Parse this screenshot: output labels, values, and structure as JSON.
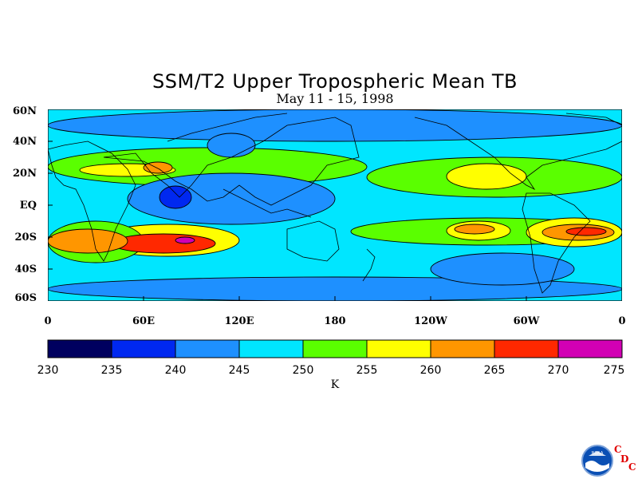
{
  "title": "SSM/T2 Upper Tropospheric Mean TB",
  "subtitle": "May 11 - 15, 1998",
  "y_ticks": [
    "60N",
    "40N",
    "20N",
    "EQ",
    "20S",
    "40S",
    "60S"
  ],
  "x_ticks": [
    "0",
    "60E",
    "120E",
    "180",
    "120W",
    "60W",
    "0"
  ],
  "colorbar": {
    "levels": [
      "230",
      "235",
      "240",
      "245",
      "250",
      "255",
      "260",
      "265",
      "270",
      "275"
    ],
    "colors": [
      "#00005f",
      "#0028f0",
      "#1e90ff",
      "#00e6ff",
      "#5aff00",
      "#ffff00",
      "#ff9600",
      "#ff2800",
      "#d200b4"
    ],
    "unit": "K"
  },
  "logo": {
    "text": "NOAA",
    "letters": [
      "C",
      "D",
      "C"
    ]
  },
  "chart_data": {
    "type": "heatmap",
    "variable": "Upper Tropospheric Mean Brightness Temperature",
    "units": "K",
    "x_range": [
      0,
      360
    ],
    "y_range": [
      -60,
      60
    ],
    "bins": [
      230,
      235,
      240,
      245,
      250,
      255,
      260,
      265,
      270,
      275
    ],
    "background_value": 247,
    "features": [
      {
        "lon": [
          0,
          50
        ],
        "lat": [
          -30,
          -15
        ],
        "value": 263
      },
      {
        "lon": [
          30,
          120
        ],
        "lat": [
          -32,
          -12
        ],
        "value": 258
      },
      {
        "lon": [
          40,
          105
        ],
        "lat": [
          -30,
          -18
        ],
        "value": 266
      },
      {
        "lon": [
          80,
          92
        ],
        "lat": [
          -24,
          -20
        ],
        "value": 271
      },
      {
        "lon": [
          0,
          60
        ],
        "lat": [
          -36,
          -10
        ],
        "value": 253
      },
      {
        "lon": [
          20,
          80
        ],
        "lat": [
          18,
          26
        ],
        "value": 257
      },
      {
        "lon": [
          60,
          78
        ],
        "lat": [
          20,
          27
        ],
        "value": 262
      },
      {
        "lon": [
          0,
          200
        ],
        "lat": [
          12,
          36
        ],
        "value": 252
      },
      {
        "lon": [
          70,
          90
        ],
        "lat": [
          -2,
          12
        ],
        "value": 236
      },
      {
        "lon": [
          50,
          180
        ],
        "lat": [
          -12,
          20
        ],
        "value": 243
      },
      {
        "lon": [
          190,
          360
        ],
        "lat": [
          -25,
          -8
        ],
        "value": 253
      },
      {
        "lon": [
          250,
          290
        ],
        "lat": [
          -22,
          -10
        ],
        "value": 258
      },
      {
        "lon": [
          255,
          280
        ],
        "lat": [
          -18,
          -12
        ],
        "value": 262
      },
      {
        "lon": [
          300,
          360
        ],
        "lat": [
          -26,
          -8
        ],
        "value": 258
      },
      {
        "lon": [
          310,
          355
        ],
        "lat": [
          -22,
          -12
        ],
        "value": 263
      },
      {
        "lon": [
          325,
          350
        ],
        "lat": [
          -19,
          -14
        ],
        "value": 267
      },
      {
        "lon": [
          250,
          300
        ],
        "lat": [
          10,
          26
        ],
        "value": 257
      },
      {
        "lon": [
          200,
          360
        ],
        "lat": [
          5,
          30
        ],
        "value": 252
      },
      {
        "lon": [
          240,
          330
        ],
        "lat": [
          -50,
          -30
        ],
        "value": 242
      },
      {
        "lon": [
          100,
          130
        ],
        "lat": [
          30,
          45
        ],
        "value": 242
      },
      {
        "lon": [
          0,
          360
        ],
        "lat": [
          40,
          60
        ],
        "value": 243
      },
      {
        "lon": [
          0,
          360
        ],
        "lat": [
          -60,
          -45
        ],
        "value": 243
      }
    ]
  }
}
